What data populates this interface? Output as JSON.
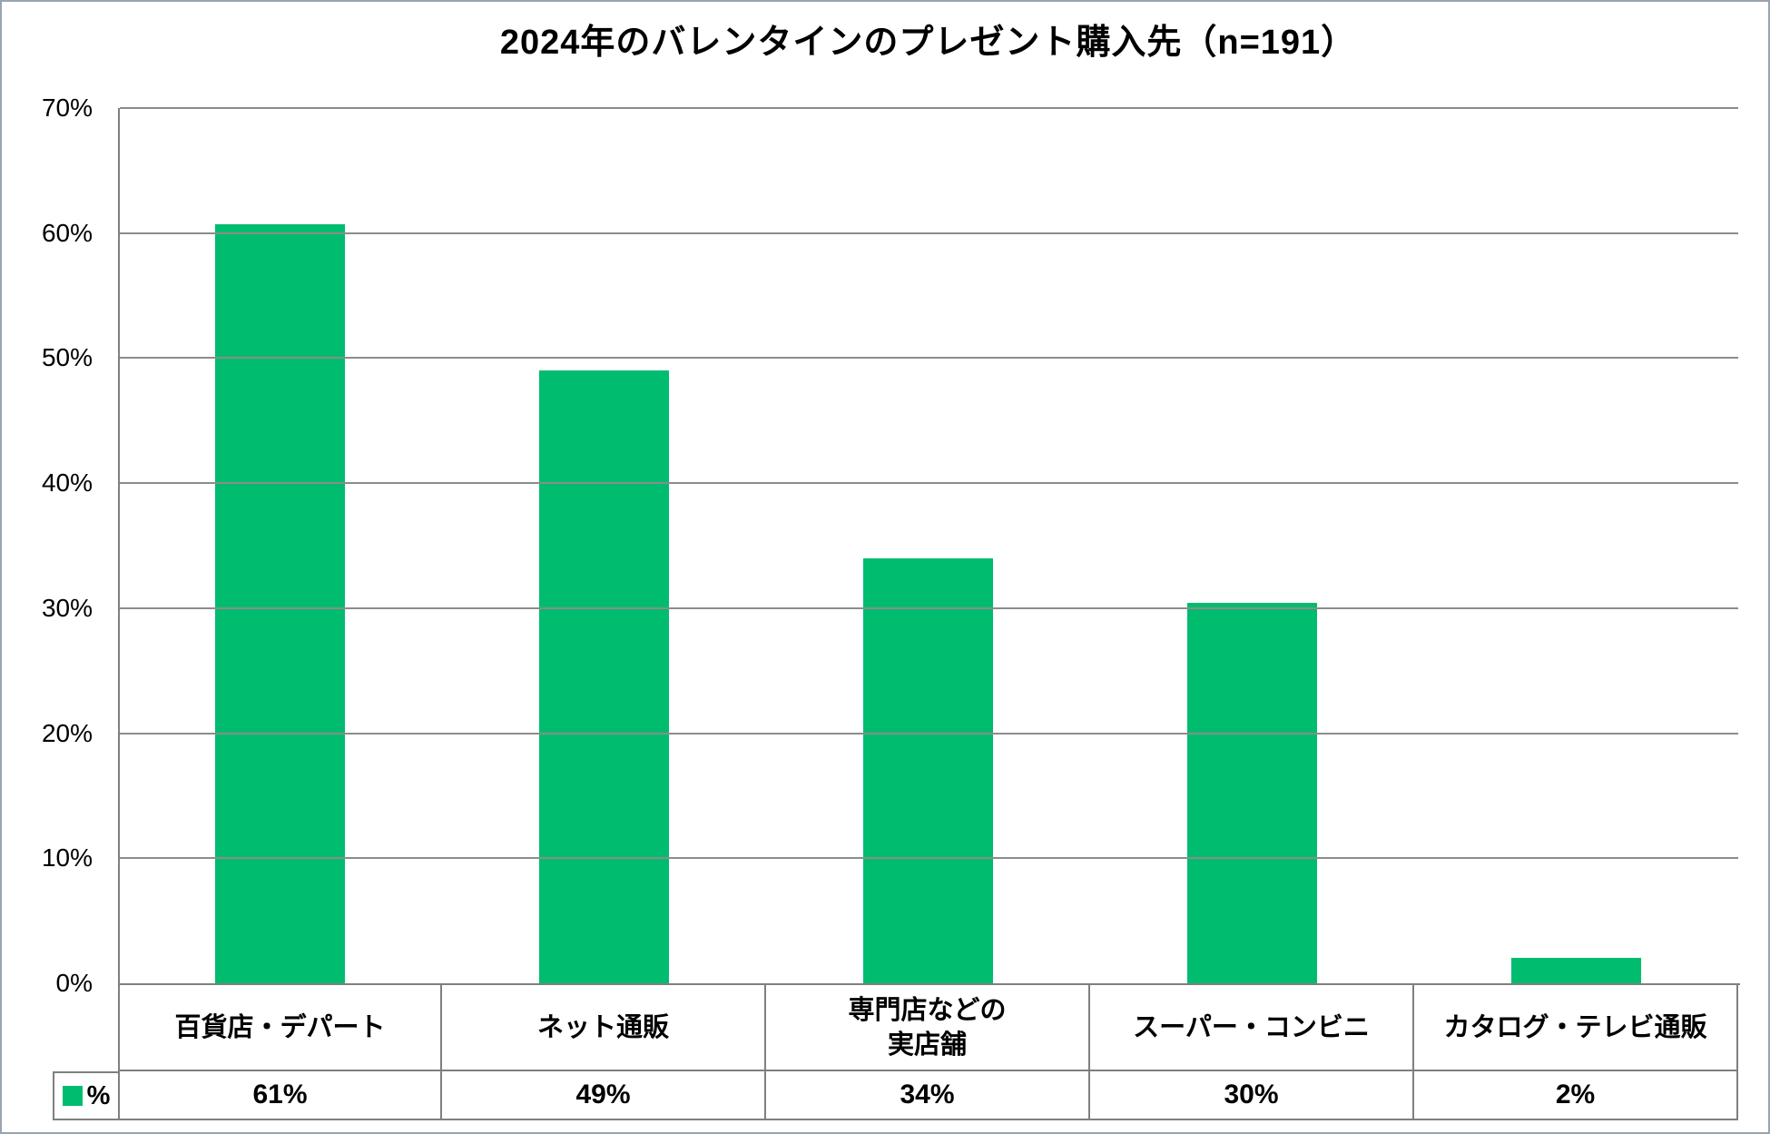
{
  "chart_data": {
    "type": "bar",
    "title": "2024年のバレンタインのプレゼント購入先（n=191）",
    "categories": [
      "百貨店・デパート",
      "ネット通販",
      "専門店などの\n実店舗",
      "スーパー・コンビニ",
      "カタログ・テレビ通販"
    ],
    "series": [
      {
        "name": "%",
        "values": [
          61,
          49,
          34,
          30,
          2
        ],
        "value_labels": [
          "61%",
          "49%",
          "34%",
          "30%",
          "2%"
        ],
        "bar_heights_pct": [
          60.7,
          49.0,
          34.0,
          30.4,
          2.0
        ]
      }
    ],
    "xlabel": "",
    "ylabel": "",
    "ylim": [
      0,
      70
    ],
    "y_ticks": [
      0,
      10,
      20,
      30,
      40,
      50,
      60,
      70
    ],
    "y_tick_labels": [
      "0%",
      "10%",
      "20%",
      "30%",
      "40%",
      "50%",
      "60%",
      "70%"
    ],
    "grid": true,
    "legend_position": "bottom-left table cell",
    "colors": {
      "bar": "#00bc6f",
      "gridline": "#8c8c8c",
      "table_border": "#7f7f7f",
      "outer_border": "#9aa4b0",
      "text": "#000000",
      "background": "#ffffff"
    }
  }
}
